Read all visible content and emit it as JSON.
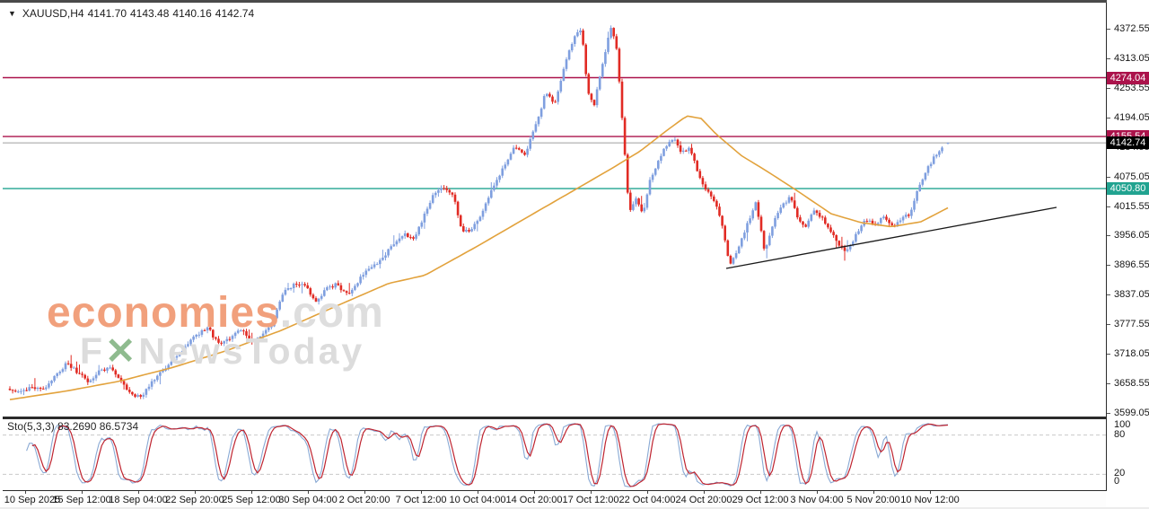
{
  "header": {
    "dropdown_icon": "▼",
    "symbol": "XAUUSD,H4",
    "open": "4141.70",
    "high": "4143.48",
    "low": "4140.16",
    "close": "4142.74"
  },
  "watermark": {
    "brand_bold": "economies",
    "brand_rest": ".com",
    "tagline_f": "F",
    "tagline_x": "✕",
    "tagline_rest": "NewsToday"
  },
  "indicator_label": "Sto(5,3,3) 83.2690 86.5734",
  "price_axis_labels": [
    "4372.55",
    "4313.05",
    "4253.55",
    "4194.05",
    "4134.55",
    "4075.05",
    "4015.55",
    "3956.05",
    "3896.55",
    "3837.05",
    "3777.55",
    "3718.05",
    "3658.55",
    "3599.05"
  ],
  "sto_axis_labels": [
    "100",
    "80",
    "20",
    "0"
  ],
  "date_axis_labels": [
    "10 Sep 2025",
    "15 Sep 12:00",
    "18 Sep 04:00",
    "22 Sep 20:00",
    "25 Sep 12:00",
    "30 Sep 04:00",
    "2 Oct 20:00",
    "7 Oct 12:00",
    "10 Oct 04:00",
    "14 Oct 20:00",
    "17 Oct 12:00",
    "22 Oct 04:00",
    "24 Oct 20:00",
    "29 Oct 12:00",
    "3 Nov 04:00",
    "5 Nov 20:00",
    "10 Nov 12:00"
  ],
  "badges": [
    {
      "text": "4274.04",
      "price": 4274.04,
      "bg": "#ab134b",
      "kind": "resistance"
    },
    {
      "text": "4155.54",
      "price": 4155.54,
      "bg": "#ab134b",
      "kind": "resistance"
    },
    {
      "text": "4142.74",
      "price": 4142.74,
      "bg": "#000000",
      "kind": "current-price"
    },
    {
      "text": "4050.80",
      "price": 4050.8,
      "bg": "#21a390",
      "kind": "support"
    }
  ],
  "colors": {
    "bull": "#7f9fdf",
    "bear": "#e12b24",
    "ma": "#e2a23c",
    "resistance_line": "#ab134b",
    "support_line": "#21a390",
    "current_line": "#b8b8b8",
    "trendline": "#1a1a1a",
    "sto_k": "#89a9d4",
    "sto_d": "#bf2430",
    "sto_grid": "#c9c9c9",
    "watermark_brand": "#f1a07c",
    "watermark_gray": "#dcdcdc"
  },
  "chart_data": {
    "type": "candlestick",
    "title": "XAUUSD,H4",
    "symbol": "XAUUSD",
    "timeframe": "H4",
    "last_candle": {
      "open": 4141.7,
      "high": 4143.48,
      "low": 4140.16,
      "close": 4142.74
    },
    "y_ticks": [
      4372.55,
      4313.05,
      4253.55,
      4194.05,
      4134.55,
      4075.05,
      4015.55,
      3956.05,
      3896.55,
      3837.05,
      3777.55,
      3718.05,
      3658.55,
      3599.05
    ],
    "x_ticks": [
      "10 Sep 2025",
      "15 Sep 12:00",
      "18 Sep 04:00",
      "22 Sep 20:00",
      "25 Sep 12:00",
      "30 Sep 04:00",
      "2 Oct 20:00",
      "7 Oct 12:00",
      "10 Oct 04:00",
      "14 Oct 20:00",
      "17 Oct 12:00",
      "22 Oct 04:00",
      "24 Oct 20:00",
      "29 Oct 12:00",
      "3 Nov 04:00",
      "5 Nov 20:00",
      "10 Nov 12:00"
    ],
    "ylim": [
      3595.4,
      4423.1
    ],
    "horizontal_levels": [
      {
        "price": 4274.04,
        "kind": "resistance"
      },
      {
        "price": 4155.54,
        "kind": "resistance"
      },
      {
        "price": 4050.8,
        "kind": "support"
      }
    ],
    "current_price": 4142.74,
    "trendline": {
      "x1": 809,
      "price1": 3890,
      "x2": 1177,
      "price2": 4013
    },
    "close_path_anchors": [
      [
        8,
        3648
      ],
      [
        20,
        3640
      ],
      [
        32,
        3652
      ],
      [
        45,
        3645
      ],
      [
        58,
        3672
      ],
      [
        72,
        3700
      ],
      [
        85,
        3678
      ],
      [
        96,
        3662
      ],
      [
        106,
        3681
      ],
      [
        118,
        3692
      ],
      [
        130,
        3668
      ],
      [
        142,
        3640
      ],
      [
        153,
        3630
      ],
      [
        164,
        3656
      ],
      [
        176,
        3680
      ],
      [
        188,
        3703
      ],
      [
        201,
        3726
      ],
      [
        214,
        3753
      ],
      [
        228,
        3772
      ],
      [
        240,
        3739
      ],
      [
        252,
        3746
      ],
      [
        265,
        3768
      ],
      [
        278,
        3743
      ],
      [
        290,
        3757
      ],
      [
        301,
        3780
      ],
      [
        312,
        3840
      ],
      [
        323,
        3856
      ],
      [
        335,
        3862
      ],
      [
        348,
        3823
      ],
      [
        360,
        3848
      ],
      [
        372,
        3858
      ],
      [
        385,
        3836
      ],
      [
        398,
        3870
      ],
      [
        410,
        3892
      ],
      [
        422,
        3908
      ],
      [
        435,
        3938
      ],
      [
        448,
        3962
      ],
      [
        458,
        3946
      ],
      [
        470,
        4000
      ],
      [
        481,
        4043
      ],
      [
        492,
        4052
      ],
      [
        502,
        4040
      ],
      [
        512,
        3962
      ],
      [
        523,
        3970
      ],
      [
        533,
        3996
      ],
      [
        545,
        4052
      ],
      [
        558,
        4092
      ],
      [
        570,
        4138
      ],
      [
        582,
        4121
      ],
      [
        594,
        4178
      ],
      [
        605,
        4245
      ],
      [
        615,
        4223
      ],
      [
        625,
        4290
      ],
      [
        636,
        4356
      ],
      [
        645,
        4371
      ],
      [
        652,
        4242
      ],
      [
        659,
        4220
      ],
      [
        666,
        4283
      ],
      [
        673,
        4342
      ],
      [
        678,
        4374
      ],
      [
        684,
        4331
      ],
      [
        691,
        4168
      ],
      [
        698,
        4002
      ],
      [
        706,
        4031
      ],
      [
        713,
        3996
      ],
      [
        721,
        4068
      ],
      [
        729,
        4100
      ],
      [
        739,
        4138
      ],
      [
        748,
        4151
      ],
      [
        757,
        4122
      ],
      [
        765,
        4136
      ],
      [
        773,
        4090
      ],
      [
        781,
        4054
      ],
      [
        791,
        4034
      ],
      [
        801,
        3982
      ],
      [
        810,
        3895
      ],
      [
        819,
        3930
      ],
      [
        829,
        3976
      ],
      [
        839,
        4022
      ],
      [
        849,
        3924
      ],
      [
        859,
        3986
      ],
      [
        869,
        4016
      ],
      [
        877,
        4036
      ],
      [
        886,
        3990
      ],
      [
        894,
        3970
      ],
      [
        903,
        4006
      ],
      [
        913,
        3990
      ],
      [
        923,
        3962
      ],
      [
        933,
        3930
      ],
      [
        941,
        3926
      ],
      [
        951,
        3960
      ],
      [
        961,
        3990
      ],
      [
        971,
        3977
      ],
      [
        981,
        3992
      ],
      [
        991,
        3974
      ],
      [
        1001,
        3990
      ],
      [
        1011,
        4000
      ],
      [
        1021,
        4058
      ],
      [
        1031,
        4094
      ],
      [
        1041,
        4124
      ],
      [
        1049,
        4139
      ],
      [
        1053,
        4142.74
      ]
    ],
    "ma_anchors": [
      [
        8,
        3626
      ],
      [
        70,
        3643
      ],
      [
        130,
        3663
      ],
      [
        190,
        3691
      ],
      [
        250,
        3725
      ],
      [
        310,
        3765
      ],
      [
        370,
        3813
      ],
      [
        430,
        3860
      ],
      [
        470,
        3876
      ],
      [
        530,
        3936
      ],
      [
        590,
        3999
      ],
      [
        640,
        4051
      ],
      [
        680,
        4093
      ],
      [
        710,
        4126
      ],
      [
        740,
        4168
      ],
      [
        762,
        4197
      ],
      [
        778,
        4192
      ],
      [
        795,
        4160
      ],
      [
        823,
        4117
      ],
      [
        852,
        4085
      ],
      [
        882,
        4050
      ],
      [
        923,
        4000
      ],
      [
        957,
        3982
      ],
      [
        990,
        3974
      ],
      [
        1023,
        3984
      ],
      [
        1053,
        4012
      ]
    ],
    "indicator": {
      "type": "stochastic",
      "label": "Sto(5,3,3)",
      "k_period": 5,
      "d_period": 3,
      "slowing": 3,
      "k_value": 83.269,
      "d_value": 86.5734,
      "overbought": 80,
      "oversold": 20,
      "range": [
        0,
        100
      ]
    }
  }
}
